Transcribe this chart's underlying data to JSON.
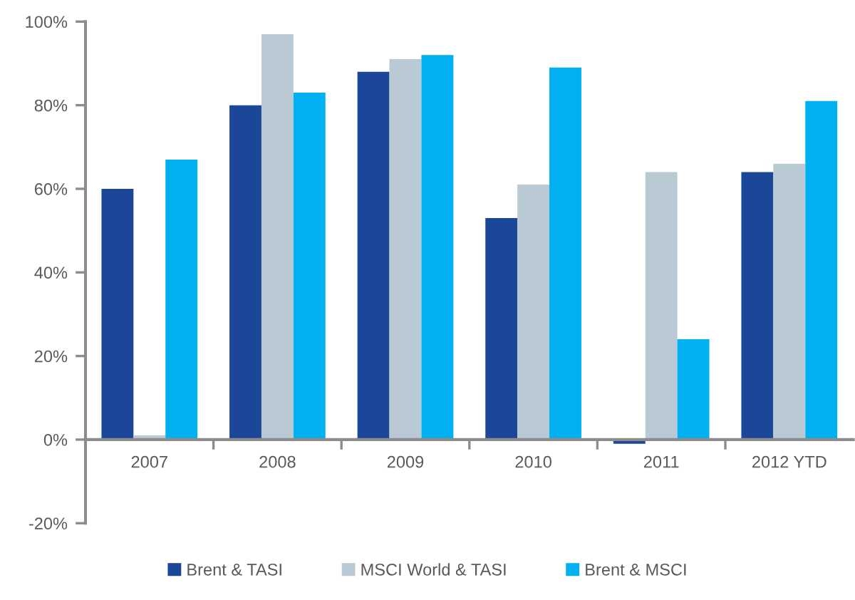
{
  "chart_data": {
    "type": "bar",
    "categories": [
      "2007",
      "2008",
      "2009",
      "2010",
      "2011",
      "2012 YTD"
    ],
    "series": [
      {
        "name": "Brent & TASI",
        "color": "#1c4798",
        "values": [
          60,
          80,
          88,
          53,
          -1,
          64
        ]
      },
      {
        "name": "MSCI World & TASI",
        "color": "#b9cad4",
        "values": [
          1,
          97,
          91,
          61,
          64,
          66
        ]
      },
      {
        "name": "Brent & MSCI",
        "color": "#00b0f0",
        "values": [
          67,
          83,
          92,
          89,
          24,
          81
        ]
      }
    ],
    "ylim": [
      -20,
      100
    ],
    "yticks": [
      {
        "value": -20,
        "label": "-20%"
      },
      {
        "value": 0,
        "label": "0%"
      },
      {
        "value": 20,
        "label": "20%"
      },
      {
        "value": 40,
        "label": "40%"
      },
      {
        "value": 60,
        "label": "60%"
      },
      {
        "value": 80,
        "label": "80%"
      },
      {
        "value": 100,
        "label": "100%"
      }
    ],
    "legend": "bottom",
    "grid": false
  }
}
